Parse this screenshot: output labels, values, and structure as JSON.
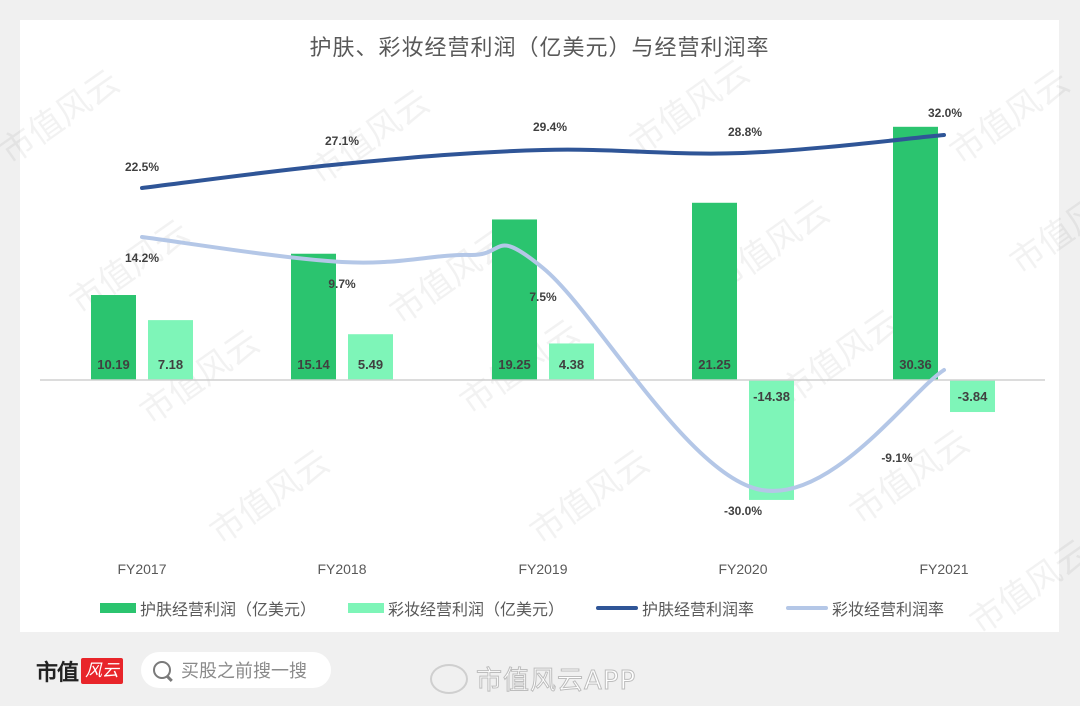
{
  "chart_data": {
    "type": "bar",
    "title": "护肤、彩妆经营利润（亿美元）与经营利润率",
    "categories": [
      "FY2017",
      "FY2018",
      "FY2019",
      "FY2020",
      "FY2021"
    ],
    "series": [
      {
        "name": "护肤经营利润（亿美元）",
        "type": "bar",
        "color": "#2bc46f",
        "values": [
          10.19,
          15.14,
          19.25,
          21.25,
          30.36
        ],
        "labels": [
          "10.19",
          "15.14",
          "19.25",
          "21.25",
          "30.36"
        ]
      },
      {
        "name": "彩妆经营利润（亿美元）",
        "type": "bar",
        "color": "#7ef5b8",
        "values": [
          7.18,
          5.49,
          4.38,
          -14.38,
          -3.84
        ],
        "labels": [
          "7.18",
          "5.49",
          "4.38",
          "-14.38",
          "-3.84"
        ]
      },
      {
        "name": "护肤经营利润率",
        "type": "line",
        "color": "#2f5597",
        "values": [
          22.5,
          27.1,
          29.4,
          28.8,
          32.0
        ],
        "labels": [
          "22.5%",
          "27.1%",
          "29.4%",
          "28.8%",
          "32.0%"
        ]
      },
      {
        "name": "彩妆经营利润率",
        "type": "line",
        "color": "#b4c7e7",
        "values": [
          14.2,
          9.7,
          7.5,
          -30.0,
          -9.1
        ],
        "labels": [
          "14.2%",
          "9.7%",
          "7.5%",
          "-30.0%",
          "-9.1%"
        ]
      }
    ],
    "xlabel": "",
    "ylabel": "",
    "grid": false,
    "legend_position": "bottom"
  },
  "legend": [
    {
      "label": "护肤经营利润（亿美元）",
      "color": "#2bc46f",
      "kind": "bar"
    },
    {
      "label": "彩妆经营利润（亿美元）",
      "color": "#7ef5b8",
      "kind": "bar"
    },
    {
      "label": "护肤经营利润率",
      "color": "#2f5597",
      "kind": "line"
    },
    {
      "label": "彩妆经营利润率",
      "color": "#b4c7e7",
      "kind": "line"
    }
  ],
  "footer": {
    "brand": "市值",
    "brand_mark": "风云",
    "search_placeholder": "买股之前搜一搜",
    "weibo_handle": "市值风云APP"
  },
  "watermark": "市值风云"
}
